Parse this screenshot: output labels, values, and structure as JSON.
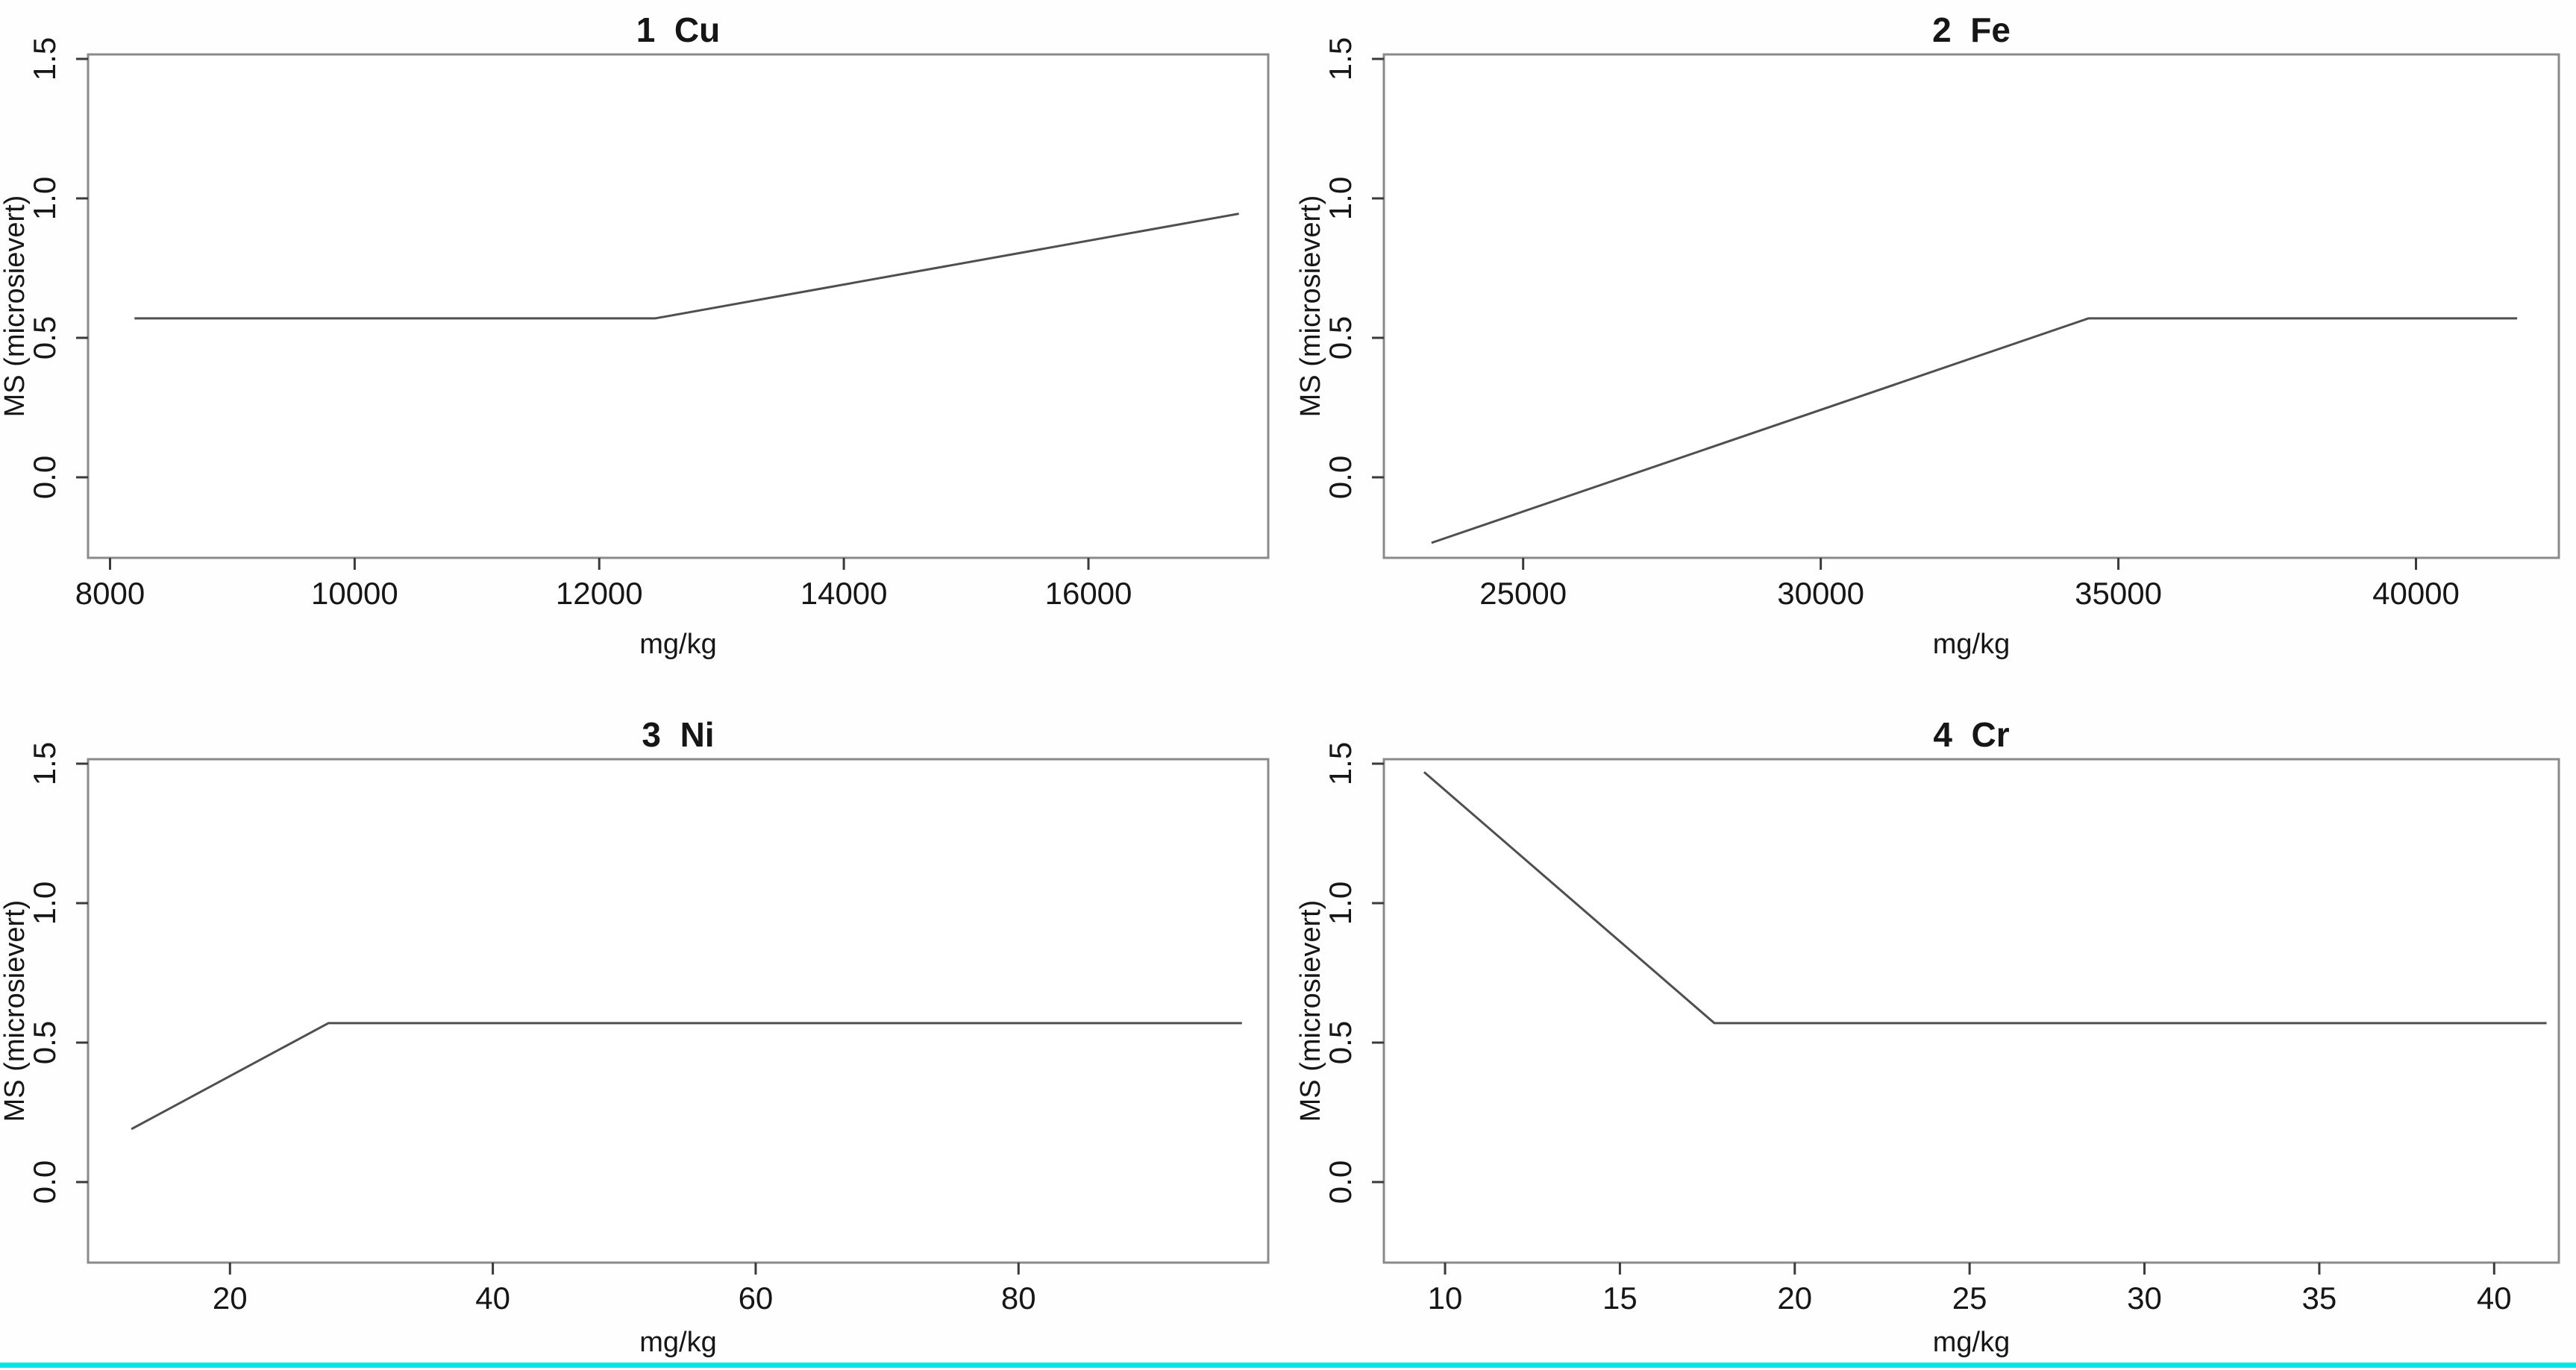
{
  "figure": {
    "background": "#fefefe",
    "line_color": "#4f4f4f",
    "box_color": "#8a8a8a",
    "tick_color": "#3a3a3a",
    "text_color": "#161616",
    "accent_rule_color": "#00e6ea"
  },
  "chart_data": [
    {
      "id": "cu",
      "type": "line",
      "title": "1  Cu",
      "xlabel": "mg/kg",
      "ylabel": "MS (microsievert)",
      "x": [
        8200,
        12460,
        17230
      ],
      "y": [
        0.57,
        0.57,
        0.945
      ],
      "xlim": [
        7820,
        17470
      ],
      "ylim": [
        -0.29,
        1.52
      ],
      "xticks": [
        8000,
        10000,
        12000,
        14000,
        16000
      ],
      "xtick_labels": [
        "8000",
        "10000",
        "12000",
        "14000",
        "16000"
      ],
      "yticks": [
        0.0,
        0.5,
        1.0,
        1.5
      ],
      "ytick_labels": [
        "0.0",
        "0.5",
        "1.0",
        "1.5"
      ],
      "grid": false,
      "legend": "none"
    },
    {
      "id": "fe",
      "type": "line",
      "title": "2  Fe",
      "xlabel": "mg/kg",
      "ylabel": "MS (microsievert)",
      "x": [
        23460,
        34500,
        41700
      ],
      "y": [
        -0.235,
        0.57,
        0.57
      ],
      "xlim": [
        22660,
        42400
      ],
      "ylim": [
        -0.29,
        1.52
      ],
      "xticks": [
        25000,
        30000,
        35000,
        40000
      ],
      "xtick_labels": [
        "25000",
        "30000",
        "35000",
        "40000"
      ],
      "yticks": [
        0.0,
        0.5,
        1.0,
        1.5
      ],
      "ytick_labels": [
        "0.0",
        "0.5",
        "1.0",
        "1.5"
      ],
      "grid": false,
      "legend": "none"
    },
    {
      "id": "ni",
      "type": "line",
      "title": "3  Ni",
      "xlabel": "mg/kg",
      "ylabel": "MS (microsievert)",
      "x": [
        12.5,
        27.5,
        97
      ],
      "y": [
        0.19,
        0.57,
        0.57
      ],
      "xlim": [
        9.2,
        99
      ],
      "ylim": [
        -0.29,
        1.52
      ],
      "xticks": [
        20,
        40,
        60,
        80
      ],
      "xtick_labels": [
        "20",
        "40",
        "60",
        "80"
      ],
      "yticks": [
        0.0,
        0.5,
        1.0,
        1.5
      ],
      "ytick_labels": [
        "0.0",
        "0.5",
        "1.0",
        "1.5"
      ],
      "grid": false,
      "legend": "none"
    },
    {
      "id": "cr",
      "type": "line",
      "title": "4  Cr",
      "xlabel": "mg/kg",
      "ylabel": "MS (microsievert)",
      "x": [
        9.4,
        17.7,
        41.5
      ],
      "y": [
        1.47,
        0.57,
        0.57
      ],
      "xlim": [
        8.25,
        41.85
      ],
      "ylim": [
        -0.29,
        1.52
      ],
      "xticks": [
        10,
        15,
        20,
        25,
        30,
        35,
        40
      ],
      "xtick_labels": [
        "10",
        "15",
        "20",
        "25",
        "30",
        "35",
        "40"
      ],
      "yticks": [
        0.0,
        0.5,
        1.0,
        1.5
      ],
      "ytick_labels": [
        "0.0",
        "0.5",
        "1.0",
        "1.5"
      ],
      "grid": false,
      "legend": "none"
    }
  ]
}
